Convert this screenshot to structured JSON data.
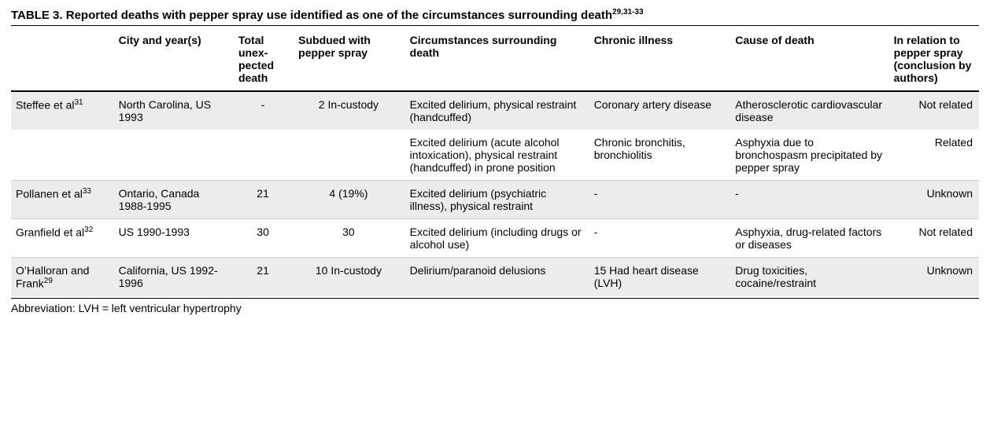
{
  "table": {
    "number": "TABLE 3.",
    "caption": "Reported deaths with pepper spray use identified as one of the circumstances surrounding death",
    "superscript": "29,31-33",
    "headers": {
      "author": "",
      "city": "City and year(s)",
      "total": "Total unex-pected death",
      "subdued": "Subdued with pepper spray",
      "circumstances": "Circumstances surrounding death",
      "chronic": "Chronic illness",
      "cause": "Cause of death",
      "relation": "In relation to pepper spray (conclusion by authors)"
    },
    "rows": [
      {
        "shade": true,
        "sep": true,
        "author": "Steffee et al",
        "author_sup": "31",
        "city": "North Carolina, US 1993",
        "total": "-",
        "subdued": "2 In-custody",
        "circumstances": "Excited delirium, physical restraint (handcuffed)",
        "chronic": "Coronary artery disease",
        "cause": "Atherosclerotic cardiovascular disease",
        "relation": "Not related"
      },
      {
        "shade": false,
        "sep": false,
        "author": "",
        "author_sup": "",
        "city": "",
        "total": "",
        "subdued": "",
        "circumstances": "Excited delirium (acute alcohol intoxication), physical restraint (handcuffed) in prone position",
        "chronic": "Chronic bronchitis, bronchiolitis",
        "cause": "Asphyxia due to bronchospasm precipitated by pepper spray",
        "relation": "Related"
      },
      {
        "shade": true,
        "sep": true,
        "author": "Pollanen et al",
        "author_sup": "33",
        "city": "Ontario, Canada 1988-1995",
        "total": "21",
        "subdued": "4 (19%)",
        "circumstances": "Excited delirium (psychiatric illness), physical restraint",
        "chronic": "-",
        "cause": "-",
        "relation": "Unknown"
      },
      {
        "shade": false,
        "sep": true,
        "author": "Granfield et al",
        "author_sup": "32",
        "city": "US 1990-1993",
        "total": "30",
        "subdued": "30",
        "circumstances": "Excited delirium (including drugs or alcohol use)",
        "chronic": "-",
        "cause": "Asphyxia, drug-related factors or diseases",
        "relation": "Not related"
      },
      {
        "shade": true,
        "sep": true,
        "author": "O’Halloran and Frank",
        "author_sup": "29",
        "city": "California, US 1992-1996",
        "total": "21",
        "subdued": "10 In-custody",
        "circumstances": "Delirium/paranoid delusions",
        "chronic": "15 Had heart disease (LVH)",
        "cause": "Drug toxicities, cocaine/restraint",
        "relation": "Unknown"
      }
    ],
    "abbreviation": "Abbreviation: LVH = left ventricular hypertrophy"
  }
}
